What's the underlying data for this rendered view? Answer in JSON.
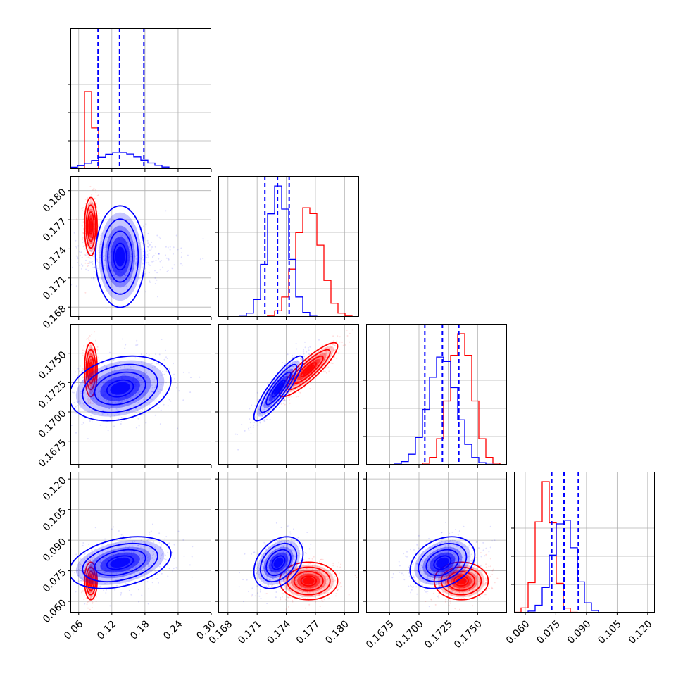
{
  "chart_data": {
    "type": "corner",
    "title": "",
    "colors": {
      "series_a": "#ff0000",
      "series_b": "#0000ff"
    },
    "grid": true,
    "parameters": [
      {
        "range": [
          0.045,
          0.3
        ],
        "ticks": [
          "0.06",
          "0.12",
          "0.18",
          "0.24",
          "0.30"
        ],
        "tick_values": [
          0.06,
          0.12,
          0.18,
          0.24,
          0.3
        ]
      },
      {
        "range": [
          0.167,
          0.1815
        ],
        "ticks": [
          "0.168",
          "0.171",
          "0.174",
          "0.177",
          "0.180"
        ],
        "tick_values": [
          0.168,
          0.171,
          0.174,
          0.177,
          0.18
        ]
      },
      {
        "range": [
          0.1655,
          0.1775
        ],
        "ticks": [
          "0.1675",
          "0.1700",
          "0.1725",
          "0.1750"
        ],
        "tick_values": [
          0.1675,
          0.17,
          0.1725,
          0.175
        ]
      },
      {
        "range": [
          0.0545,
          0.1235
        ],
        "ticks": [
          "0.060",
          "0.075",
          "0.090",
          "0.105",
          "0.120"
        ],
        "tick_values": [
          0.06,
          0.075,
          0.09,
          0.105,
          0.12
        ]
      }
    ],
    "series": [
      {
        "color": "#ff0000",
        "mean": [
          0.082,
          0.1763,
          0.1736,
          0.07
        ],
        "sd": [
          0.005,
          0.0013,
          0.001,
          0.004
        ],
        "corr": [
          [
            1,
            0,
            0,
            0
          ],
          [
            0,
            1,
            0.88,
            0
          ],
          [
            0,
            0.88,
            1,
            0
          ],
          [
            0,
            0,
            0,
            1
          ]
        ]
      },
      {
        "color": "#0000ff",
        "mean": [
          0.135,
          0.1732,
          0.172,
          0.079
        ],
        "sd": [
          0.04,
          0.0011,
          0.0012,
          0.0055
        ],
        "corr": [
          [
            1,
            0,
            0.25,
            0.35
          ],
          [
            0,
            1,
            0.88,
            0.35
          ],
          [
            0.25,
            0.88,
            1,
            0.3
          ],
          [
            0.35,
            0.35,
            0.3,
            1
          ]
        ]
      }
    ],
    "quantile_lines": [
      [
        0.095,
        0.134,
        0.178
      ],
      [
        0.1718,
        0.1731,
        0.1743
      ],
      [
        0.1705,
        0.172,
        0.1734
      ],
      [
        0.073,
        0.079,
        0.086
      ]
    ]
  }
}
